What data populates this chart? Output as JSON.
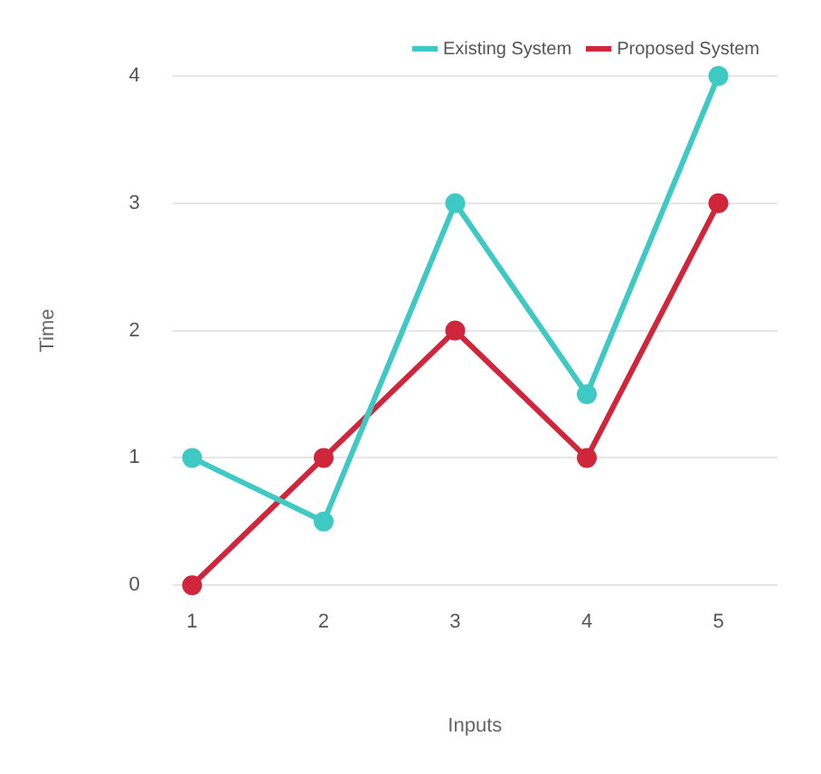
{
  "chart_data": {
    "type": "line",
    "xlabel": "Inputs",
    "ylabel": "Time",
    "x": [
      1,
      2,
      3,
      4,
      5
    ],
    "series": [
      {
        "name": "Existing System",
        "color": "#3ec9c4",
        "values": [
          1,
          0.5,
          3,
          1.5,
          4
        ]
      },
      {
        "name": "Proposed System",
        "color": "#d0253a",
        "values": [
          0,
          1,
          2,
          1,
          3
        ]
      }
    ],
    "xlim": [
      0.85,
      5.45
    ],
    "xticks": [
      1,
      2,
      3,
      4,
      5
    ],
    "ylim": [
      0,
      4
    ],
    "yticks": [
      0,
      1,
      2,
      3,
      4
    ],
    "grid": "y",
    "legend": "top right",
    "marker": "circle",
    "line_style": "solid"
  }
}
